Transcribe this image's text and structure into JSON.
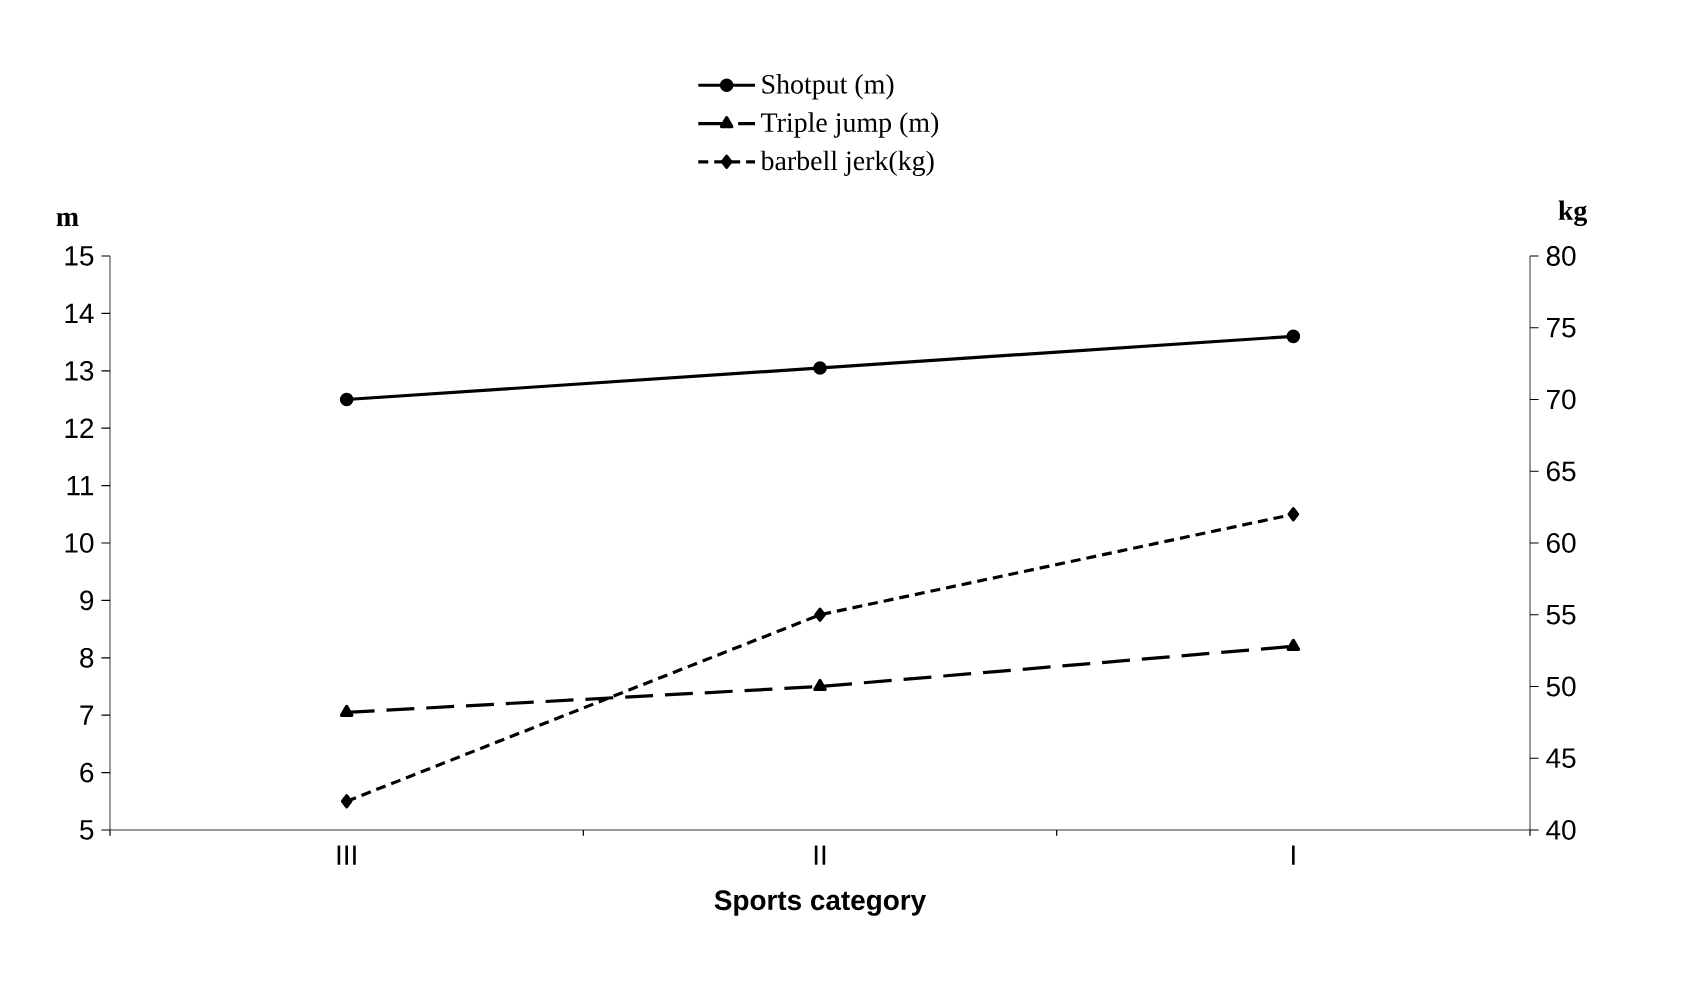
{
  "chart_data": {
    "type": "line",
    "xlabel": "Sports category",
    "ylabel": "m",
    "y2label": "kg",
    "categories": [
      "III",
      "II",
      "I"
    ],
    "ylim": [
      5,
      15
    ],
    "yticks": [
      5,
      6,
      7,
      8,
      9,
      10,
      11,
      12,
      13,
      14,
      15
    ],
    "y2lim": [
      40,
      80
    ],
    "y2ticks": [
      40,
      45,
      50,
      55,
      60,
      65,
      70,
      75,
      80
    ],
    "grid": false,
    "legend": "top",
    "series": [
      {
        "name": "Shotput (m)",
        "color": "#000000",
        "values": [
          12.5,
          13.05,
          13.6
        ],
        "marker": "circle",
        "line_style": "solid"
      },
      {
        "name": "Triple jump (m)",
        "color": "#000000",
        "values": [
          7.05,
          7.5,
          8.2
        ],
        "marker": "triangle",
        "line_style": "dashed"
      },
      {
        "name": "barbell jerk(kg)",
        "color": "#000000",
        "values": [
          42,
          55,
          62
        ],
        "marker": "diamond",
        "line_style": "dotted",
        "axis": "y2"
      }
    ]
  }
}
